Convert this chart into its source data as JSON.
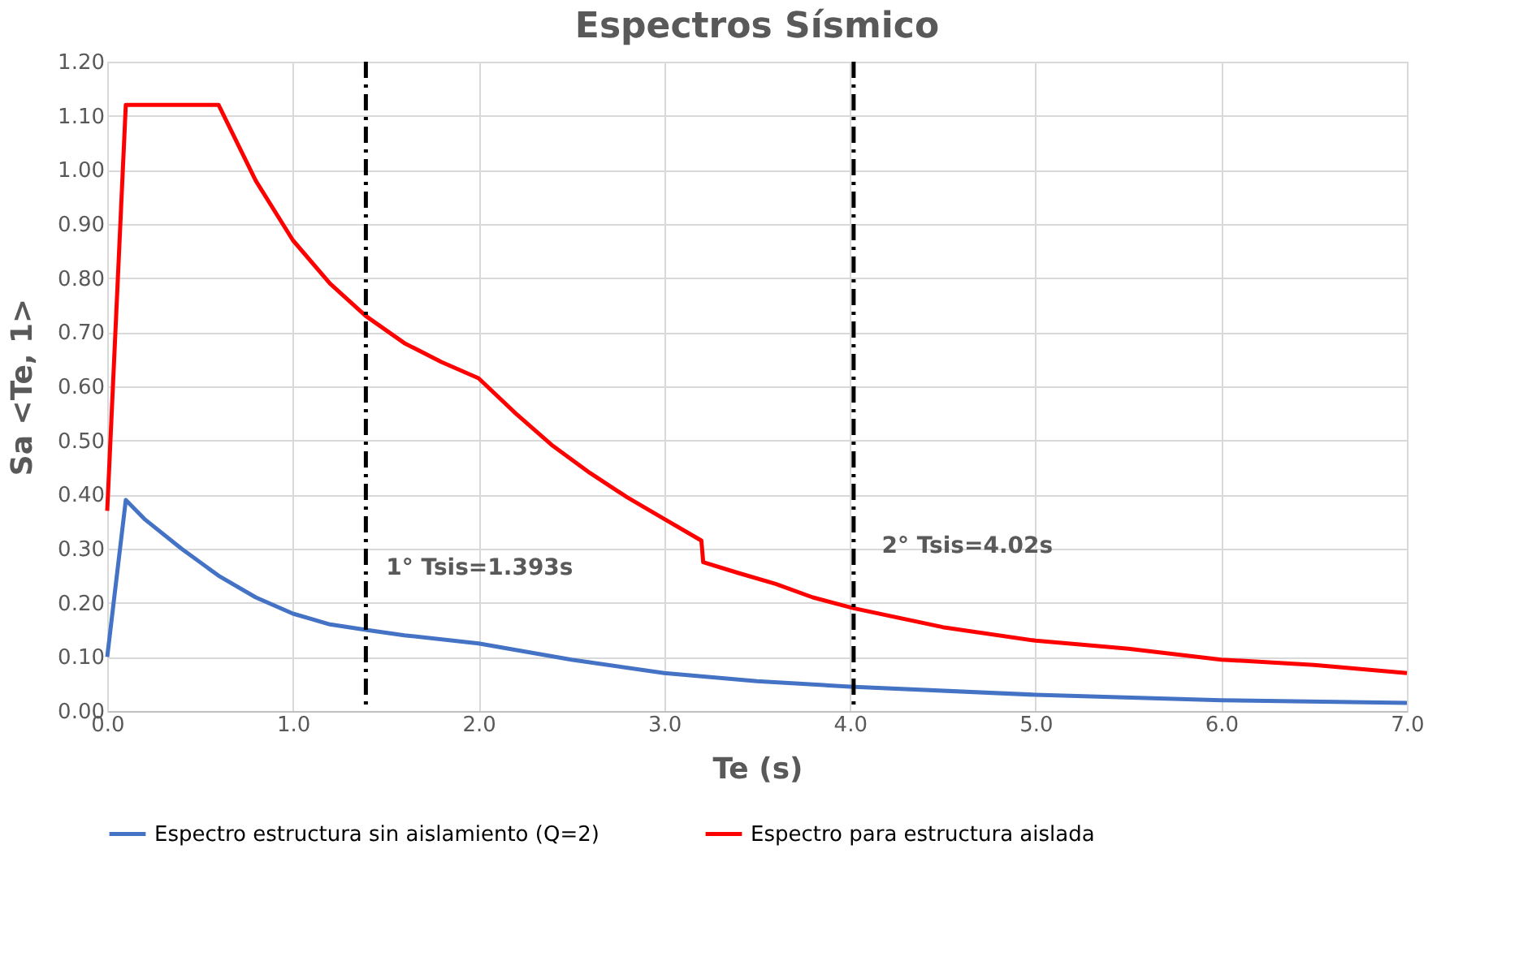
{
  "chart_data": {
    "type": "line",
    "title": "Espectros Sísmico",
    "xlabel": "Te (s)",
    "ylabel": "Sa <Te, 1>",
    "xlim": [
      0,
      7
    ],
    "ylim": [
      0,
      1.2
    ],
    "xticks": [
      {
        "value": 0,
        "label": "0.0"
      },
      {
        "value": 1,
        "label": "1.0"
      },
      {
        "value": 2,
        "label": "2.0"
      },
      {
        "value": 3,
        "label": "3.0"
      },
      {
        "value": 4,
        "label": "4.0"
      },
      {
        "value": 5,
        "label": "5.0"
      },
      {
        "value": 6,
        "label": "6.0"
      },
      {
        "value": 7,
        "label": "7.0"
      }
    ],
    "yticks": [
      {
        "value": 0,
        "label": "0.00"
      },
      {
        "value": 0.1,
        "label": "0.10"
      },
      {
        "value": 0.2,
        "label": "0.20"
      },
      {
        "value": 0.3,
        "label": "0.30"
      },
      {
        "value": 0.4,
        "label": "0.40"
      },
      {
        "value": 0.5,
        "label": "0.50"
      },
      {
        "value": 0.6,
        "label": "0.60"
      },
      {
        "value": 0.7,
        "label": "0.70"
      },
      {
        "value": 0.8,
        "label": "0.80"
      },
      {
        "value": 0.9,
        "label": "0.90"
      },
      {
        "value": 1.0,
        "label": "1.00"
      },
      {
        "value": 1.1,
        "label": "1.10"
      },
      {
        "value": 1.2,
        "label": "1.20"
      }
    ],
    "grid": true,
    "legend": "bottom",
    "line_style": "solid",
    "marker": "none",
    "series": [
      {
        "name": "Espectro estructura sin aislamiento (Q=2)",
        "color": "#4472c4",
        "x": [
          0,
          0.1,
          0.2,
          0.4,
          0.6,
          0.8,
          1.0,
          1.2,
          1.393,
          1.6,
          2.0,
          2.5,
          3.0,
          3.5,
          4.0,
          5.0,
          6.0,
          7.0
        ],
        "values": [
          0.1,
          0.39,
          0.355,
          0.3,
          0.25,
          0.21,
          0.18,
          0.16,
          0.15,
          0.14,
          0.125,
          0.095,
          0.07,
          0.055,
          0.045,
          0.03,
          0.02,
          0.015
        ]
      },
      {
        "name": "Espectro para estructura aislada",
        "color": "#ff0000",
        "x": [
          0,
          0.1,
          0.6,
          0.8,
          1.0,
          1.2,
          1.393,
          1.6,
          1.8,
          2.0,
          2.2,
          2.4,
          2.6,
          2.8,
          3.0,
          3.2,
          3.21,
          3.4,
          3.6,
          3.8,
          4.02,
          4.5,
          5.0,
          5.5,
          6.0,
          6.5,
          7.0
        ],
        "values": [
          0.37,
          1.12,
          1.12,
          0.98,
          0.87,
          0.79,
          0.73,
          0.68,
          0.645,
          0.615,
          0.55,
          0.49,
          0.44,
          0.395,
          0.355,
          0.315,
          0.275,
          0.255,
          0.235,
          0.21,
          0.19,
          0.155,
          0.13,
          0.115,
          0.095,
          0.085,
          0.07
        ]
      }
    ],
    "ref_lines": [
      {
        "axis": "x",
        "value": 1.393,
        "color": "#000000",
        "line_style": "dashdot"
      },
      {
        "axis": "x",
        "value": 4.02,
        "color": "#000000",
        "line_style": "dashdot"
      }
    ],
    "annotations": [
      {
        "text": "1° Tsis=1.393s",
        "x": 1.393,
        "y": 0.15
      },
      {
        "text": "2° Tsis=4.02s",
        "x": 4.02,
        "y": 0.19
      }
    ]
  }
}
